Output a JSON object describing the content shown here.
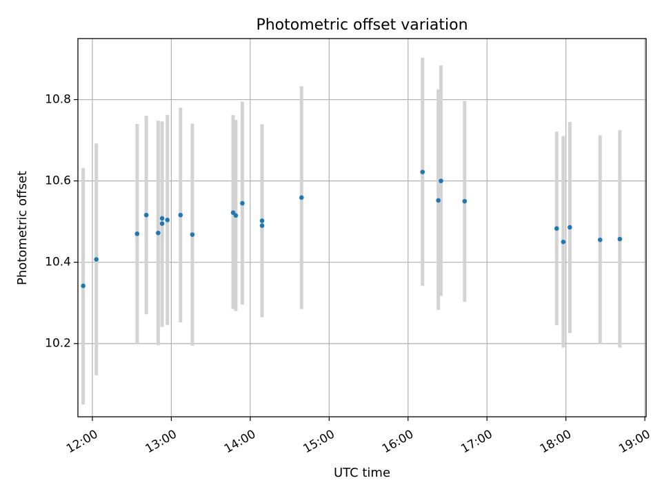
{
  "chart_data": {
    "type": "scatter",
    "title": "Photometric offset variation",
    "xlabel": "UTC time",
    "ylabel": "Photometric offset",
    "x_axis_kind": "time",
    "xlim": [
      "11:49",
      "19:01"
    ],
    "ylim": [
      10.02,
      10.95
    ],
    "x_ticks": [
      "12:00",
      "13:00",
      "14:00",
      "15:00",
      "16:00",
      "17:00",
      "18:00",
      "19:00"
    ],
    "y_ticks": [
      10.2,
      10.4,
      10.6,
      10.8
    ],
    "y_tick_labels": [
      "10.2",
      "10.4",
      "10.6",
      "10.8"
    ],
    "grid": true,
    "marker_color": "#1f77b4",
    "errorbar_color": "#d3d3d3",
    "series": [
      {
        "points": [
          {
            "x": "11:53",
            "y": 10.342,
            "err_low": 10.05,
            "err_high": 10.632
          },
          {
            "x": "12:03",
            "y": 10.407,
            "err_low": 10.122,
            "err_high": 10.692
          },
          {
            "x": "12:34",
            "y": 10.47,
            "err_low": 10.2,
            "err_high": 10.74
          },
          {
            "x": "12:41",
            "y": 10.516,
            "err_low": 10.272,
            "err_high": 10.76
          },
          {
            "x": "12:50",
            "y": 10.472,
            "err_low": 10.196,
            "err_high": 10.748
          },
          {
            "x": "12:53",
            "y": 10.495,
            "err_low": 10.241,
            "err_high": 10.746
          },
          {
            "x": "12:53",
            "y": 10.508,
            "err_low": 10.241,
            "err_high": 10.746
          },
          {
            "x": "12:57",
            "y": 10.504,
            "err_low": 10.246,
            "err_high": 10.762
          },
          {
            "x": "13:07",
            "y": 10.516,
            "err_low": 10.252,
            "err_high": 10.78
          },
          {
            "x": "13:16",
            "y": 10.468,
            "err_low": 10.195,
            "err_high": 10.741
          },
          {
            "x": "13:47",
            "y": 10.522,
            "err_low": 10.285,
            "err_high": 10.762
          },
          {
            "x": "13:49",
            "y": 10.515,
            "err_low": 10.28,
            "err_high": 10.75
          },
          {
            "x": "13:54",
            "y": 10.545,
            "err_low": 10.296,
            "err_high": 10.795
          },
          {
            "x": "14:09",
            "y": 10.49,
            "err_low": 10.265,
            "err_high": 10.715
          },
          {
            "x": "14:09",
            "y": 10.502,
            "err_low": 10.265,
            "err_high": 10.739
          },
          {
            "x": "14:39",
            "y": 10.559,
            "err_low": 10.285,
            "err_high": 10.833
          },
          {
            "x": "16:11",
            "y": 10.622,
            "err_low": 10.342,
            "err_high": 10.903
          },
          {
            "x": "16:23",
            "y": 10.552,
            "err_low": 10.283,
            "err_high": 10.825
          },
          {
            "x": "16:25",
            "y": 10.6,
            "err_low": 10.317,
            "err_high": 10.884
          },
          {
            "x": "16:43",
            "y": 10.55,
            "err_low": 10.303,
            "err_high": 10.797
          },
          {
            "x": "17:53",
            "y": 10.483,
            "err_low": 10.245,
            "err_high": 10.721
          },
          {
            "x": "17:58",
            "y": 10.45,
            "err_low": 10.19,
            "err_high": 10.71
          },
          {
            "x": "18:03",
            "y": 10.486,
            "err_low": 10.226,
            "err_high": 10.745
          },
          {
            "x": "18:26",
            "y": 10.455,
            "err_low": 10.2,
            "err_high": 10.712
          },
          {
            "x": "18:41",
            "y": 10.457,
            "err_low": 10.19,
            "err_high": 10.725
          }
        ]
      }
    ]
  }
}
